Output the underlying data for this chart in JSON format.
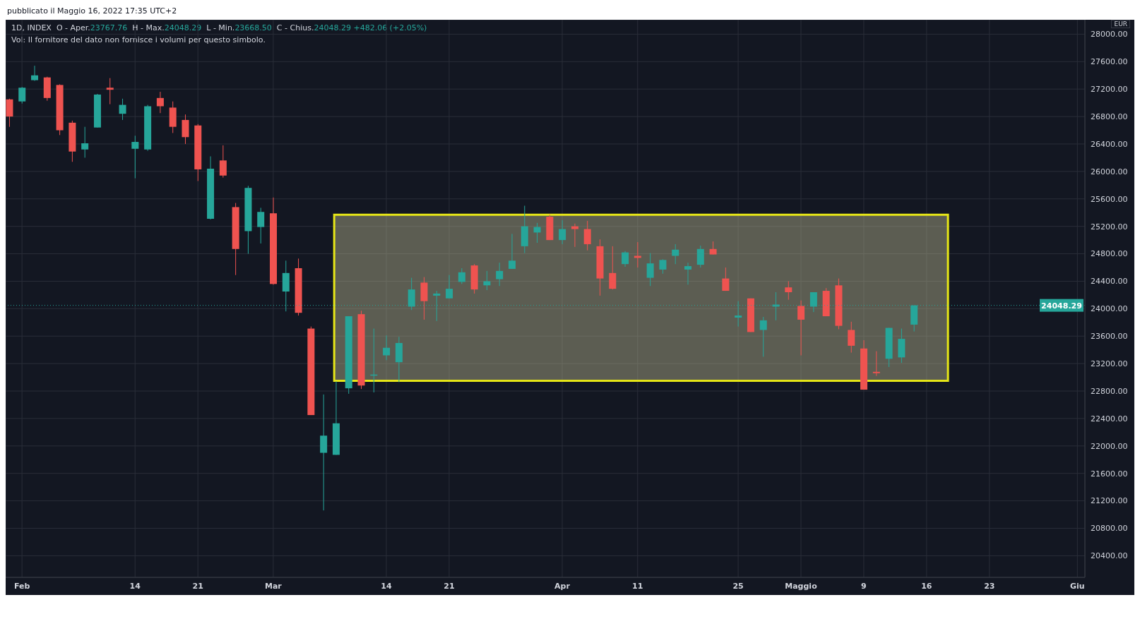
{
  "chart_data": {
    "type": "candlestick",
    "title": "1D, INDEX  O - Aper.23767.76  H - Max.24048.29  L - Min.23668.50  C - Chius.24048.29 +482.06 (+2.05%)",
    "subtitle": "Vol: Il fornitore del dato non fornisce i volumi per questo simbolo.",
    "annotations": [
      "pubblicato il Maggio 16, 2022 17:35 UTC+2",
      "EUR"
    ],
    "categories": [
      null,
      "Feb",
      null,
      null,
      null,
      null,
      null,
      null,
      null,
      null,
      "14",
      null,
      null,
      null,
      null,
      "21",
      null,
      null,
      null,
      null,
      null,
      "Mar",
      null,
      null,
      null,
      null,
      null,
      null,
      null,
      null,
      "14",
      null,
      null,
      null,
      null,
      "21",
      null,
      null,
      null,
      null,
      null,
      null,
      null,
      null,
      "Apr",
      null,
      null,
      null,
      null,
      null,
      "11",
      null,
      null,
      null,
      null,
      null,
      null,
      null,
      "25",
      null,
      null,
      null,
      null,
      "Maggio",
      null,
      null,
      null,
      null,
      "9",
      null,
      null,
      null,
      null,
      "16",
      null,
      null,
      null,
      null,
      "23",
      null,
      null,
      null,
      null,
      null,
      null,
      "Giu"
    ],
    "ohlc": [
      [
        27050,
        27060,
        26650,
        26800
      ],
      [
        27020,
        27230,
        26990,
        27220
      ],
      [
        27330,
        27540,
        27320,
        27400
      ],
      [
        27370,
        27380,
        27030,
        27070
      ],
      [
        27260,
        27270,
        26530,
        26600
      ],
      [
        26710,
        26740,
        26140,
        26290
      ],
      [
        26320,
        26650,
        26200,
        26410
      ],
      [
        26640,
        27130,
        26640,
        27120
      ],
      [
        27220,
        27360,
        26980,
        27190
      ],
      [
        26840,
        27060,
        26750,
        26970
      ],
      [
        26330,
        26520,
        25900,
        26430
      ],
      [
        26320,
        26970,
        26300,
        26950
      ],
      [
        27070,
        27160,
        26850,
        26950
      ],
      [
        26930,
        27020,
        26560,
        26650
      ],
      [
        26750,
        26830,
        26400,
        26500
      ],
      [
        26670,
        26690,
        25860,
        26030
      ],
      [
        25310,
        26220,
        25300,
        26040
      ],
      [
        26160,
        26380,
        25910,
        25940
      ],
      [
        25480,
        25540,
        24490,
        24870
      ],
      [
        25130,
        25790,
        24800,
        25760
      ],
      [
        25190,
        25470,
        24950,
        25410
      ],
      [
        25390,
        25620,
        24350,
        24360
      ],
      [
        24250,
        24700,
        23960,
        24520
      ],
      [
        24590,
        24730,
        23900,
        23940
      ],
      [
        23710,
        23740,
        22450,
        22450
      ],
      [
        21900,
        22750,
        21060,
        22150
      ],
      [
        21870,
        22940,
        21870,
        22330
      ],
      [
        22840,
        23890,
        22760,
        23890
      ],
      [
        23920,
        23970,
        22830,
        22880
      ],
      [
        23030,
        23710,
        22780,
        23040
      ],
      [
        23320,
        23610,
        23250,
        23430
      ],
      [
        23220,
        23590,
        22930,
        23500
      ],
      [
        24030,
        24450,
        23980,
        24280
      ],
      [
        24380,
        24460,
        23840,
        24110
      ],
      [
        24190,
        24260,
        23820,
        24220
      ],
      [
        24150,
        24490,
        24150,
        24290
      ],
      [
        24390,
        24590,
        24360,
        24530
      ],
      [
        24630,
        24650,
        24220,
        24280
      ],
      [
        24340,
        24550,
        24270,
        24400
      ],
      [
        24430,
        24670,
        24330,
        24550
      ],
      [
        24580,
        25090,
        24580,
        24700
      ],
      [
        24910,
        25500,
        24810,
        25200
      ],
      [
        25110,
        25250,
        24960,
        25190
      ],
      [
        25340,
        25370,
        25000,
        25000
      ],
      [
        25000,
        25290,
        24940,
        25160
      ],
      [
        25200,
        25240,
        24900,
        25160
      ],
      [
        25160,
        25280,
        24850,
        24940
      ],
      [
        24910,
        25010,
        24190,
        24440
      ],
      [
        24520,
        24910,
        24280,
        24290
      ],
      [
        24650,
        24840,
        24610,
        24820
      ],
      [
        24770,
        24970,
        24600,
        24740
      ],
      [
        24450,
        24810,
        24330,
        24660
      ],
      [
        24570,
        24720,
        24510,
        24710
      ],
      [
        24770,
        24940,
        24650,
        24860
      ],
      [
        24570,
        24670,
        24350,
        24620
      ],
      [
        24640,
        24920,
        24600,
        24870
      ],
      [
        24870,
        24980,
        24790,
        24790
      ],
      [
        24440,
        24600,
        24260,
        24260
      ],
      [
        23870,
        24110,
        23740,
        23900
      ],
      [
        24150,
        24150,
        23660,
        23660
      ],
      [
        23690,
        23880,
        23300,
        23830
      ],
      [
        24030,
        24240,
        23830,
        24060
      ],
      [
        24310,
        24400,
        24130,
        24240
      ],
      [
        24040,
        24120,
        23320,
        23840
      ],
      [
        24030,
        24240,
        23950,
        24240
      ],
      [
        24260,
        24300,
        23890,
        23890
      ],
      [
        24340,
        24440,
        23700,
        23750
      ],
      [
        23690,
        23810,
        23360,
        23460
      ],
      [
        23420,
        23540,
        22820,
        22820
      ],
      [
        23080,
        23380,
        23020,
        23060
      ],
      [
        23270,
        23720,
        23150,
        23720
      ],
      [
        23290,
        23710,
        23210,
        23560
      ],
      [
        23767.76,
        24048.29,
        23668.5,
        24048.29
      ],
      null,
      null,
      null,
      null,
      null,
      null,
      null,
      null,
      null,
      null,
      null,
      null,
      null
    ],
    "colors": [
      "#ef5350",
      "#26a69a",
      "#26a69a",
      "#ef5350",
      "#ef5350",
      "#ef5350",
      "#26a69a",
      "#26a69a",
      "#ef5350",
      "#26a69a",
      "#26a69a",
      "#26a69a",
      "#ef5350",
      "#ef5350",
      "#ef5350",
      "#ef5350",
      "#26a69a",
      "#ef5350",
      "#ef5350",
      "#26a69a",
      "#26a69a",
      "#ef5350",
      "#26a69a",
      "#ef5350",
      "#ef5350",
      "#26a69a",
      "#26a69a",
      "#26a69a",
      "#ef5350",
      "#26a69a",
      "#26a69a",
      "#26a69a",
      "#26a69a",
      "#ef5350",
      "#26a69a",
      "#26a69a",
      "#26a69a",
      "#ef5350",
      "#26a69a",
      "#26a69a",
      "#26a69a",
      "#26a69a",
      "#26a69a",
      "#ef5350",
      "#26a69a",
      "#ef5350",
      "#ef5350",
      "#ef5350",
      "#ef5350",
      "#26a69a",
      "#ef5350",
      "#26a69a",
      "#26a69a",
      "#26a69a",
      "#26a69a",
      "#26a69a",
      "#ef5350",
      "#ef5350",
      "#26a69a",
      "#ef5350",
      "#26a69a",
      "#26a69a",
      "#ef5350",
      "#ef5350",
      "#26a69a",
      "#ef5350",
      "#ef5350",
      "#ef5350",
      "#ef5350",
      "#ef5350",
      "#26a69a",
      "#26a69a",
      "#26a69a",
      null,
      null,
      null,
      null,
      null,
      null,
      null,
      null,
      null,
      null,
      null,
      null,
      null
    ],
    "ylim": [
      20085,
      28210
    ],
    "yticks": [
      {
        "value": 20400,
        "label": "20400.00"
      },
      {
        "value": 20800,
        "label": "20800.00"
      },
      {
        "value": 21200,
        "label": "21200.00"
      },
      {
        "value": 21600,
        "label": "21600.00"
      },
      {
        "value": 22000,
        "label": "22000.00"
      },
      {
        "value": 22400,
        "label": "22400.00"
      },
      {
        "value": 22800,
        "label": "22800.00"
      },
      {
        "value": 23200,
        "label": "23200.00"
      },
      {
        "value": 23600,
        "label": "23600.00"
      },
      {
        "value": 24000,
        "label": "24000.00"
      },
      {
        "value": 24400,
        "label": "24400.00"
      },
      {
        "value": 24800,
        "label": "24800.00"
      },
      {
        "value": 25200,
        "label": "25200.00"
      },
      {
        "value": 25600,
        "label": "25600.00"
      },
      {
        "value": 26000,
        "label": "26000.00"
      },
      {
        "value": 26400,
        "label": "26400.00"
      },
      {
        "value": 26800,
        "label": "26800.00"
      },
      {
        "value": 27200,
        "label": "27200.00"
      },
      {
        "value": 27600,
        "label": "27600.00"
      },
      {
        "value": 28000,
        "label": "28000.00"
      }
    ],
    "ref_lines": [
      {
        "axis": "y",
        "value": 24048.29,
        "label": "24048.29",
        "color": "#26a69a",
        "line_style": "dotted"
      }
    ],
    "bands": [
      {
        "axis": "y",
        "from": 22950,
        "to": 25370,
        "color": "#e6e617"
      }
    ],
    "grid": true
  }
}
